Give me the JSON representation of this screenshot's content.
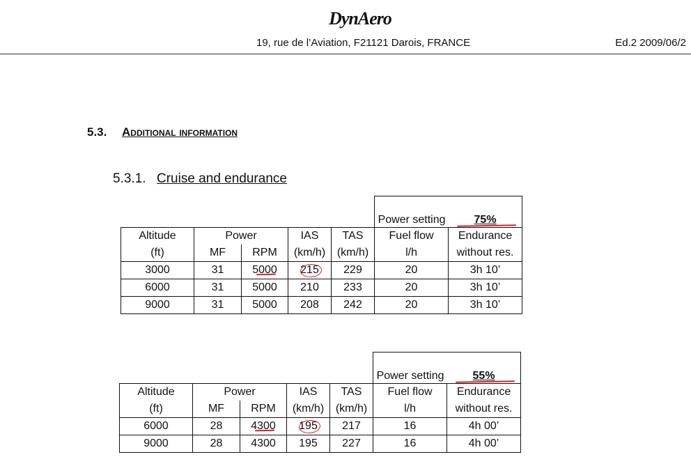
{
  "header": {
    "logo": "DynAero",
    "address": "19, rue de l’Aviation, F21121 Darois, FRANCE",
    "edition": "Ed.2 2009/06/2"
  },
  "section": {
    "number": "5.3.",
    "title": "Additional information"
  },
  "subsection": {
    "number": "5.3.1.",
    "title": "Cruise and endurance"
  },
  "tables": [
    {
      "power_label": "Power setting",
      "power_value": "75%",
      "header_top": [
        "Altitude",
        "Power",
        "IAS",
        "TAS",
        "Fuel flow",
        "Endurance"
      ],
      "header_bottom": [
        "(ft)",
        "MF",
        "RPM",
        "(km/h)",
        "(km/h)",
        "l/h",
        "without res."
      ],
      "rows": [
        [
          3000,
          31,
          5000,
          215,
          229,
          20,
          "3h 10’"
        ],
        [
          6000,
          31,
          5000,
          210,
          233,
          20,
          "3h 10’"
        ],
        [
          9000,
          31,
          5000,
          208,
          242,
          20,
          "3h 10’"
        ]
      ]
    },
    {
      "power_label": "Power setting",
      "power_value": "55%",
      "header_top": [
        "Altitude",
        "Power",
        "IAS",
        "TAS",
        "Fuel flow",
        "Endurance"
      ],
      "header_bottom": [
        "(ft)",
        "MF",
        "RPM",
        "(km/h)",
        "(km/h)",
        "l/h",
        "without res."
      ],
      "rows": [
        [
          6000,
          28,
          4300,
          195,
          217,
          16,
          "4h 00’"
        ],
        [
          9000,
          28,
          4300,
          195,
          227,
          16,
          "4h 00’"
        ]
      ]
    }
  ]
}
